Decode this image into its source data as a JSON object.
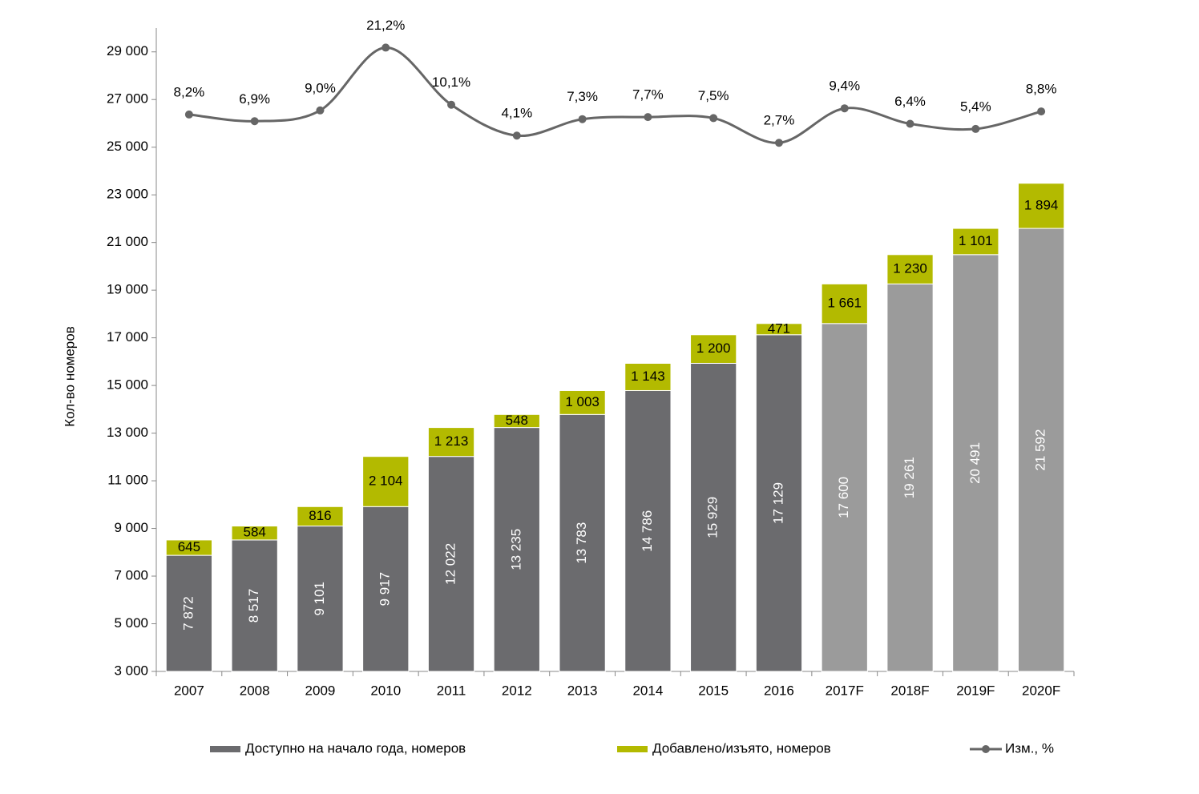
{
  "chart_data": {
    "type": "bar",
    "stacked": true,
    "categories": [
      "2007",
      "2008",
      "2009",
      "2010",
      "2011",
      "2012",
      "2013",
      "2014",
      "2015",
      "2016",
      "2017F",
      "2018F",
      "2019F",
      "2020F"
    ],
    "y_label": "Кол-во номеров",
    "ylim": [
      3000,
      30000
    ],
    "yticks": [
      {
        "value": 3000,
        "label": "3 000"
      },
      {
        "value": 5000,
        "label": "5 000"
      },
      {
        "value": 7000,
        "label": "7 000"
      },
      {
        "value": 9000,
        "label": "9 000"
      },
      {
        "value": 11000,
        "label": "11 000"
      },
      {
        "value": 13000,
        "label": "13 000"
      },
      {
        "value": 15000,
        "label": "15 000"
      },
      {
        "value": 17000,
        "label": "17 000"
      },
      {
        "value": 19000,
        "label": "19 000"
      },
      {
        "value": 21000,
        "label": "21 000"
      },
      {
        "value": 23000,
        "label": "23 000"
      },
      {
        "value": 25000,
        "label": "25 000"
      },
      {
        "value": 27000,
        "label": "27 000"
      },
      {
        "value": 29000,
        "label": "29 000"
      }
    ],
    "y2lim": [
      -100,
      25
    ],
    "legend": "bottom",
    "series": [
      {
        "name": "Доступно на начало года, номеров",
        "type": "bar",
        "color": "#6b6b6e",
        "colors": [
          "#6b6b6e",
          "#6b6b6e",
          "#6b6b6e",
          "#6b6b6e",
          "#6b6b6e",
          "#6b6b6e",
          "#6b6b6e",
          "#6b6b6e",
          "#6b6b6e",
          "#6b6b6e",
          "#9b9b9b",
          "#9b9b9b",
          "#9b9b9b",
          "#9b9b9b"
        ],
        "values": [
          7872,
          8517,
          9101,
          9917,
          12022,
          13235,
          13783,
          14786,
          15929,
          17129,
          17600,
          19261,
          20491,
          21592
        ],
        "value_labels": [
          "7 872",
          "8 517",
          "9 101",
          "9 917",
          "12 022",
          "13 235",
          "13 783",
          "14 786",
          "15 929",
          "17 129",
          "17 600",
          "19 261",
          "20 491",
          "21 592"
        ]
      },
      {
        "name": "Добавлено/изъято, номеров",
        "type": "bar",
        "color": "#b3ba00",
        "values": [
          645,
          584,
          816,
          2104,
          1213,
          548,
          1003,
          1143,
          1200,
          471,
          1661,
          1230,
          1101,
          1894
        ],
        "value_labels": [
          "645",
          "584",
          "816",
          "2 104",
          "1 213",
          "548",
          "1 003",
          "1 143",
          "1 200",
          "471",
          "1 661",
          "1 230",
          "1 101",
          "1 894"
        ]
      },
      {
        "name": "Изм., %",
        "type": "line",
        "axis": "y2",
        "color": "#666666",
        "values": [
          8.2,
          6.9,
          9.0,
          21.2,
          10.1,
          4.1,
          7.3,
          7.7,
          7.5,
          2.7,
          9.4,
          6.4,
          5.4,
          8.8
        ],
        "value_labels": [
          "8,2%",
          "6,9%",
          "9,0%",
          "21,2%",
          "10,1%",
          "4,1%",
          "7,3%",
          "7,7%",
          "7,5%",
          "2,7%",
          "9,4%",
          "6,4%",
          "5,4%",
          "8,8%"
        ]
      }
    ]
  }
}
